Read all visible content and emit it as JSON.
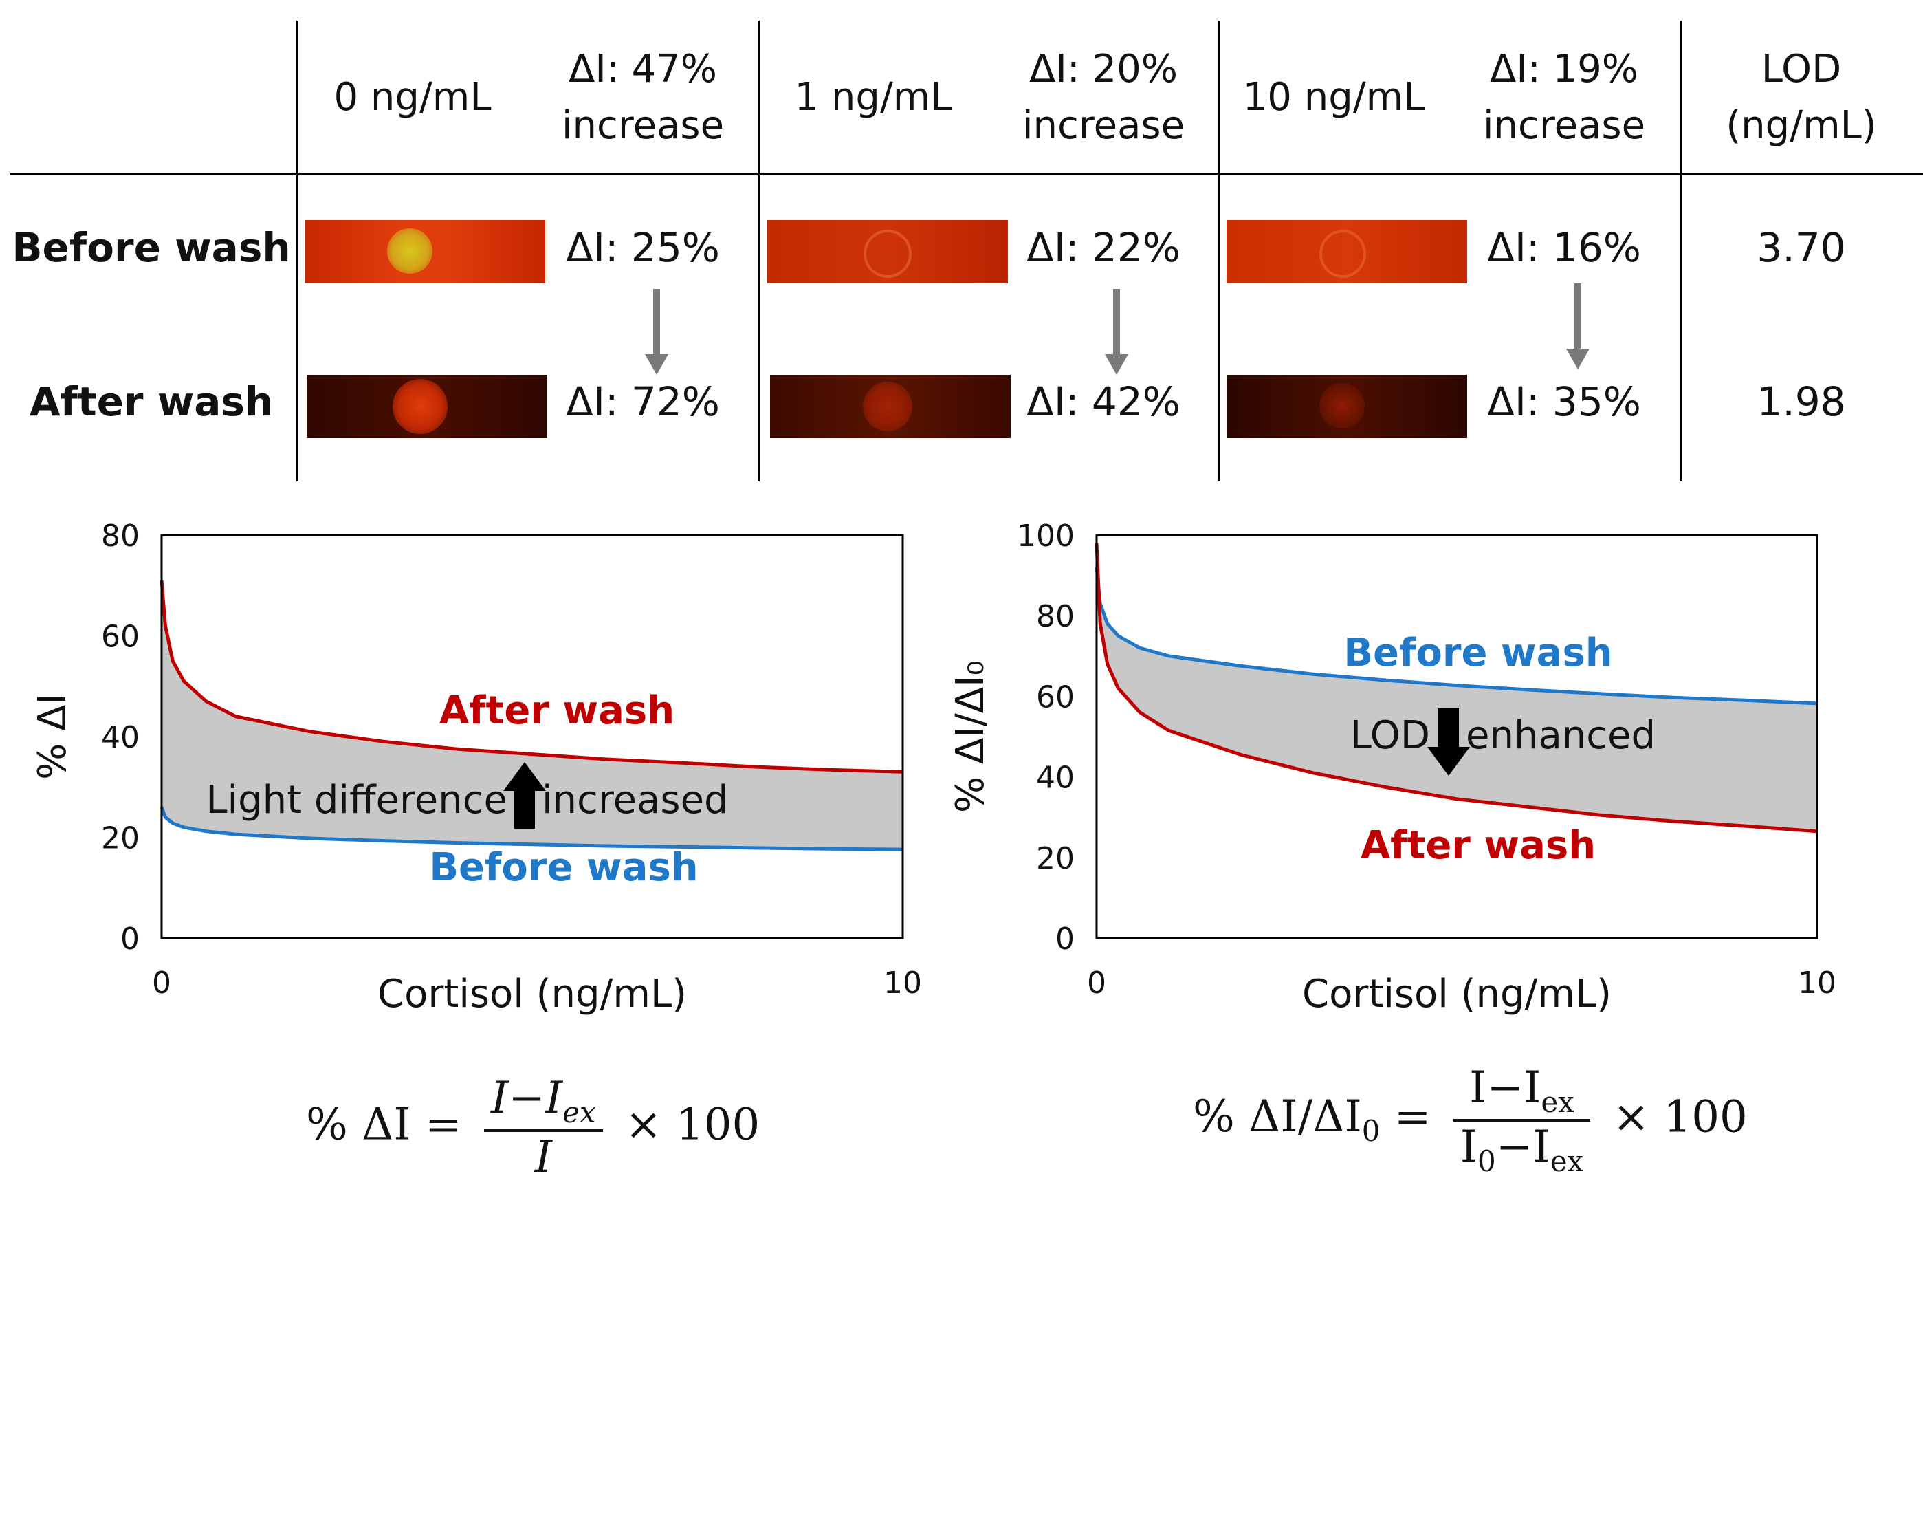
{
  "table": {
    "columns": [
      {
        "conc": "0 ng/mL",
        "delta_line1": "ΔI: 47%",
        "delta_line2": "increase"
      },
      {
        "conc": "1 ng/mL",
        "delta_line1": "ΔI: 20%",
        "delta_line2": "increase"
      },
      {
        "conc": "10 ng/mL",
        "delta_line1": "ΔI: 19%",
        "delta_line2": "increase"
      }
    ],
    "lod_header_line1": "LOD",
    "lod_header_line2": "(ng/mL)",
    "rows": [
      {
        "label": "Before wash",
        "values": [
          "ΔI: 25%",
          "ΔI: 22%",
          "ΔI: 16%"
        ],
        "lod": "3.70"
      },
      {
        "label": "After wash",
        "values": [
          "ΔI: 72%",
          "ΔI: 42%",
          "ΔI: 35%"
        ],
        "lod": "1.98"
      }
    ]
  },
  "chart_data": [
    {
      "type": "line",
      "title": "",
      "xlabel": "Cortisol (ng/mL)",
      "ylabel": "% ΔI",
      "xlim": [
        0,
        10
      ],
      "ylim": [
        0,
        80
      ],
      "xticks": [
        "0",
        "10"
      ],
      "yticks": [
        "0",
        "20",
        "40",
        "60",
        "80"
      ],
      "series": [
        {
          "name": "After wash",
          "color": "#c00000",
          "x": [
            0,
            0.05,
            0.15,
            0.3,
            0.6,
            1,
            2,
            3,
            4,
            5,
            6,
            7,
            8,
            9,
            10
          ],
          "y": [
            71,
            62,
            55,
            51,
            47,
            44,
            41,
            39,
            37.5,
            36.5,
            35.5,
            34.8,
            34,
            33.4,
            33
          ]
        },
        {
          "name": "Before wash",
          "color": "#1f78c8",
          "x": [
            0,
            0.05,
            0.15,
            0.3,
            0.6,
            1,
            2,
            3,
            4,
            5,
            6,
            7,
            8,
            9,
            10
          ],
          "y": [
            26,
            24,
            22.8,
            22,
            21.2,
            20.6,
            19.8,
            19.3,
            18.9,
            18.6,
            18.3,
            18.1,
            17.9,
            17.7,
            17.6
          ]
        }
      ],
      "annotations": [
        "After wash",
        "Before wash",
        "Light difference",
        "increased"
      ]
    },
    {
      "type": "line",
      "title": "",
      "xlabel": "Cortisol (ng/mL)",
      "ylabel": "% ΔI/ΔI₀",
      "xlim": [
        0,
        10
      ],
      "ylim": [
        0,
        100
      ],
      "xticks": [
        "0",
        "10"
      ],
      "yticks": [
        "0",
        "20",
        "40",
        "60",
        "80",
        "100"
      ],
      "series": [
        {
          "name": "Before wash",
          "color": "#1f78c8",
          "x": [
            0,
            0.05,
            0.15,
            0.3,
            0.6,
            1,
            2,
            3,
            4,
            5,
            6,
            7,
            8,
            9,
            10
          ],
          "y": [
            92,
            83,
            78,
            75,
            72,
            70,
            67.5,
            65.5,
            64,
            62.7,
            61.6,
            60.6,
            59.7,
            59,
            58.2
          ]
        },
        {
          "name": "After wash",
          "color": "#c00000",
          "x": [
            0,
            0.05,
            0.15,
            0.3,
            0.6,
            1,
            2,
            3,
            4,
            5,
            6,
            7,
            8,
            9,
            10
          ],
          "y": [
            98,
            78,
            68,
            62,
            56,
            51.5,
            45.5,
            41,
            37.5,
            34.5,
            32.5,
            30.5,
            29,
            27.8,
            26.5
          ]
        }
      ],
      "annotations": [
        "Before wash",
        "After wash",
        "LOD",
        "enhanced"
      ]
    }
  ],
  "formulas": {
    "left": {
      "lhs": "% ΔI =",
      "num": "I−I",
      "num_sub": "ex",
      "den": "I",
      "rhs": "× 100"
    },
    "right": {
      "lhs": "% ΔI/ΔI",
      "lhs_sub": "0",
      "eq": "=",
      "num": "I−I",
      "num_sub": "ex",
      "den": "I",
      "den_sub1": "0",
      "den_mid": "−I",
      "den_sub2": "ex",
      "rhs": "× 100"
    }
  }
}
